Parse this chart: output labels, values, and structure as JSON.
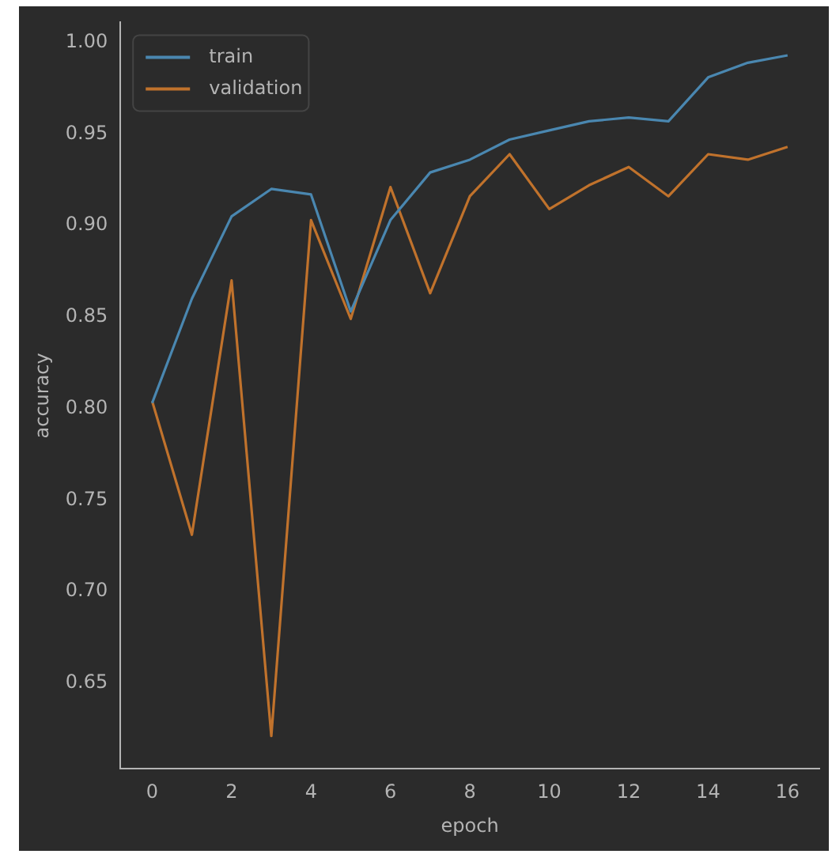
{
  "chart_data": {
    "type": "line",
    "xlabel": "epoch",
    "ylabel": "accuracy",
    "x": [
      0,
      1,
      2,
      3,
      4,
      5,
      6,
      7,
      8,
      9,
      10,
      11,
      12,
      13,
      14,
      15,
      16
    ],
    "series": [
      {
        "name": "train",
        "color": "#4a87b0",
        "values": [
          0.803,
          0.86,
          0.905,
          0.92,
          0.917,
          0.853,
          0.903,
          0.929,
          0.936,
          0.947,
          0.952,
          0.957,
          0.959,
          0.957,
          0.981,
          0.989,
          0.993
        ]
      },
      {
        "name": "validation",
        "color": "#c0722c",
        "values": [
          0.804,
          0.731,
          0.87,
          0.621,
          0.903,
          0.849,
          0.921,
          0.863,
          0.916,
          0.939,
          0.909,
          0.922,
          0.932,
          0.916,
          0.939,
          0.936,
          0.943
        ]
      }
    ],
    "xlim": [
      -0.8,
      16.8
    ],
    "xticks": [
      0,
      2,
      4,
      6,
      8,
      10,
      12,
      14,
      16
    ],
    "ylim": [
      0.603,
      1.011
    ],
    "yticks": [
      {
        "value": 0.65,
        "label": "0.65"
      },
      {
        "value": 0.7,
        "label": "0.70"
      },
      {
        "value": 0.75,
        "label": "0.75"
      },
      {
        "value": 0.8,
        "label": "0.80"
      },
      {
        "value": 0.85,
        "label": "0.85"
      },
      {
        "value": 0.9,
        "label": "0.90"
      },
      {
        "value": 0.95,
        "label": "0.95"
      },
      {
        "value": 1.0,
        "label": "1.00"
      }
    ],
    "grid": false,
    "legend": "top left",
    "marker": "none",
    "line_style": "solid"
  }
}
